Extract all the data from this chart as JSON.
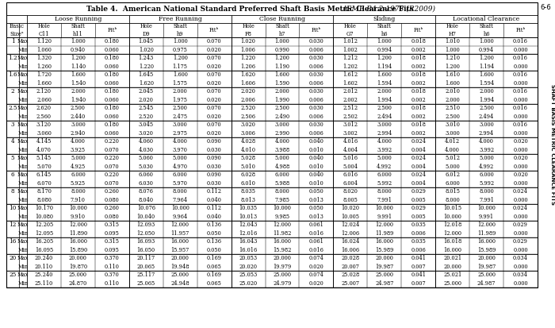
{
  "title_bold": "Table 4.  American National Standard Preferred Shaft Basis Metric Clearance Fits",
  "title_italic": "ASME B4.2-1978 (R2009)",
  "side_text": "SHAFT BASIS METRIC CLEARANCE FITS",
  "page_num": "6-6",
  "col_groups": [
    "Loose Running",
    "Free Running",
    "Close Running",
    "Sliding",
    "Locational Clearance"
  ],
  "sub_headers": [
    [
      "Hole\nC11",
      "Shaft\nh11",
      "Fitᵇ"
    ],
    [
      "Hole\nD9",
      "Shaft\nh9",
      "Fitᵇ"
    ],
    [
      "Hole\nF8",
      "Shaft\nh7",
      "Fitᵇ"
    ],
    [
      "Hole\nG7",
      "Shaft\nh6",
      "Fitᵇ"
    ],
    [
      "Hole\nH7",
      "Shaft\nh6",
      "Fitᵇ"
    ]
  ],
  "rows": [
    [
      "1",
      "Max",
      "1.120",
      "1.000",
      "0.180",
      "1.045",
      "1.000",
      "0.070",
      "1.020",
      "1.000",
      "0.030",
      "1.012",
      "1.000",
      "0.018",
      "1.010",
      "1.000",
      "0.016"
    ],
    [
      "",
      "Min",
      "1.060",
      "0.940",
      "0.060",
      "1.020",
      "0.975",
      "0.020",
      "1.006",
      "0.990",
      "0.006",
      "1.002",
      "0.994",
      "0.002",
      "1.000",
      "0.994",
      "0.000"
    ],
    [
      "1.2",
      "Max",
      "1.320",
      "1.200",
      "0.180",
      "1.243",
      "1.200",
      "0.070",
      "1.220",
      "1.200",
      "0.030",
      "1.212",
      "1.200",
      "0.018",
      "1.210",
      "1.200",
      "0.016"
    ],
    [
      "",
      "Min",
      "1.260",
      "1.140",
      "0.060",
      "1.220",
      "1.175",
      "0.020",
      "1.206",
      "1.190",
      "0.006",
      "1.202",
      "1.194",
      "0.002",
      "1.200",
      "1.194",
      "0.000"
    ],
    [
      "1.6",
      "Max",
      "1.720",
      "1.600",
      "0.180",
      "1.645",
      "1.600",
      "0.070",
      "1.620",
      "1.600",
      "0.030",
      "1.612",
      "1.600",
      "0.018",
      "1.610",
      "1.600",
      "0.016"
    ],
    [
      "",
      "Min",
      "1.660",
      "1.540",
      "0.060",
      "1.620",
      "1.575",
      "0.020",
      "1.606",
      "1.590",
      "0.006",
      "1.602",
      "1.594",
      "0.002",
      "1.600",
      "1.594",
      "0.000"
    ],
    [
      "2",
      "Max",
      "2.120",
      "2.000",
      "0.180",
      "2.045",
      "2.000",
      "0.070",
      "2.020",
      "2.000",
      "0.030",
      "2.012",
      "2.000",
      "0.018",
      "2.010",
      "2.000",
      "0.016"
    ],
    [
      "",
      "Min",
      "2.060",
      "1.940",
      "0.060",
      "2.020",
      "1.975",
      "0.020",
      "2.006",
      "1.990",
      "0.006",
      "2.002",
      "1.994",
      "0.002",
      "2.000",
      "1.994",
      "0.000"
    ],
    [
      "2.5",
      "Max",
      "2.620",
      "2.500",
      "0.180",
      "2.545",
      "2.500",
      "0.070",
      "2.520",
      "2.500",
      "0.030",
      "2.512",
      "2.500",
      "0.018",
      "2.510",
      "2.500",
      "0.016"
    ],
    [
      "",
      "Min",
      "2.560",
      "2.440",
      "0.060",
      "2.520",
      "2.475",
      "0.020",
      "2.506",
      "2.490",
      "0.006",
      "2.502",
      "2.494",
      "0.002",
      "2.500",
      "2.494",
      "0.000"
    ],
    [
      "3",
      "Max",
      "3.120",
      "3.000",
      "0.180",
      "3.045",
      "3.000",
      "0.070",
      "3.020",
      "3.000",
      "0.030",
      "3.012",
      "3.000",
      "0.018",
      "3.010",
      "3.000",
      "0.016"
    ],
    [
      "",
      "Min",
      "3.060",
      "2.940",
      "0.060",
      "3.020",
      "2.975",
      "0.020",
      "3.006",
      "2.990",
      "0.006",
      "3.002",
      "2.994",
      "0.002",
      "3.000",
      "2.994",
      "0.000"
    ],
    [
      "4",
      "Max",
      "4.145",
      "4.000",
      "0.220",
      "4.060",
      "4.000",
      "0.090",
      "4.028",
      "4.000",
      "0.040",
      "4.016",
      "4.000",
      "0.024",
      "4.012",
      "4.000",
      "0.020"
    ],
    [
      "",
      "Min",
      "4.070",
      "3.925",
      "0.070",
      "4.030",
      "3.970",
      "0.030",
      "4.010",
      "3.988",
      "0.010",
      "4.004",
      "3.992",
      "0.004",
      "4.000",
      "3.992",
      "0.000"
    ],
    [
      "5",
      "Max",
      "5.145",
      "5.000",
      "0.220",
      "5.060",
      "5.000",
      "0.090",
      "5.028",
      "5.000",
      "0.040",
      "5.016",
      "5.000",
      "0.024",
      "5.012",
      "5.000",
      "0.020"
    ],
    [
      "",
      "Min",
      "5.070",
      "4.925",
      "0.070",
      "5.030",
      "4.970",
      "0.030",
      "5.010",
      "4.988",
      "0.010",
      "5.004",
      "4.992",
      "0.004",
      "5.000",
      "4.992",
      "0.000"
    ],
    [
      "6",
      "Max",
      "6.145",
      "6.000",
      "0.220",
      "6.060",
      "6.000",
      "0.090",
      "6.028",
      "6.000",
      "0.040",
      "6.016",
      "6.000",
      "0.024",
      "6.012",
      "6.000",
      "0.020"
    ],
    [
      "",
      "Min",
      "6.070",
      "5.925",
      "0.070",
      "6.030",
      "5.970",
      "0.030",
      "6.010",
      "5.988",
      "0.010",
      "6.004",
      "5.992",
      "0.004",
      "6.000",
      "5.992",
      "0.000"
    ],
    [
      "8",
      "Max",
      "8.170",
      "8.000",
      "0.260",
      "8.076",
      "8.000",
      "0.112",
      "8.035",
      "8.000",
      "0.050",
      "8.020",
      "8.000",
      "0.029",
      "8.015",
      "8.000",
      "0.024"
    ],
    [
      "",
      "Min",
      "8.080",
      "7.910",
      "0.080",
      "8.040",
      "7.964",
      "0.040",
      "8.013",
      "7.985",
      "0.013",
      "8.005",
      "7.991",
      "0.005",
      "8.000",
      "7.991",
      "0.000"
    ],
    [
      "10",
      "Max",
      "10.170",
      "10.000",
      "0.260",
      "10.076",
      "10.000",
      "0.112",
      "10.035",
      "10.000",
      "0.050",
      "10.020",
      "10.000",
      "0.029",
      "10.015",
      "10.000",
      "0.024"
    ],
    [
      "",
      "Min",
      "10.080",
      "9.910",
      "0.080",
      "10.040",
      "9.964",
      "0.040",
      "10.013",
      "9.985",
      "0.013",
      "10.005",
      "9.991",
      "0.005",
      "10.000",
      "9.991",
      "0.000"
    ],
    [
      "12",
      "Max",
      "12.205",
      "12.000",
      "0.315",
      "12.093",
      "12.000",
      "0.136",
      "12.043",
      "12.000",
      "0.061",
      "12.024",
      "12.000",
      "0.035",
      "12.018",
      "12.000",
      "0.029"
    ],
    [
      "",
      "Min",
      "12.095",
      "11.890",
      "0.095",
      "12.050",
      "11.957",
      "0.050",
      "12.016",
      "11.982",
      "0.016",
      "12.006",
      "11.989",
      "0.006",
      "12.000",
      "11.989",
      "0.000"
    ],
    [
      "16",
      "Max",
      "16.205",
      "16.000",
      "0.315",
      "16.093",
      "16.000",
      "0.136",
      "16.043",
      "16.000",
      "0.061",
      "16.024",
      "16.000",
      "0.035",
      "16.018",
      "16.000",
      "0.029"
    ],
    [
      "",
      "Min",
      "16.095",
      "15.890",
      "0.095",
      "16.050",
      "15.957",
      "0.050",
      "16.016",
      "15.982",
      "0.016",
      "16.006",
      "15.989",
      "0.006",
      "16.000",
      "15.989",
      "0.000"
    ],
    [
      "20",
      "Max",
      "20.240",
      "20.000",
      "0.370",
      "20.117",
      "20.000",
      "0.169",
      "20.053",
      "20.000",
      "0.074",
      "20.028",
      "20.000",
      "0.041",
      "20.021",
      "20.000",
      "0.034"
    ],
    [
      "",
      "Min",
      "20.110",
      "19.870",
      "0.110",
      "20.065",
      "19.948",
      "0.065",
      "20.020",
      "19.979",
      "0.020",
      "20.007",
      "19.987",
      "0.007",
      "20.000",
      "19.987",
      "0.000"
    ],
    [
      "25",
      "Max",
      "25.240",
      "25.000",
      "0.370",
      "25.117",
      "25.000",
      "0.169",
      "25.053",
      "25.000",
      "0.074",
      "25.028",
      "25.000",
      "0.041",
      "25.021",
      "25.000",
      "0.034"
    ],
    [
      "",
      "Min",
      "25.110",
      "24.870",
      "0.110",
      "25.065",
      "24.948",
      "0.065",
      "25.020",
      "24.979",
      "0.020",
      "25.007",
      "24.987",
      "0.007",
      "25.000",
      "24.987",
      "0.000"
    ]
  ],
  "bg_color": "#ffffff"
}
